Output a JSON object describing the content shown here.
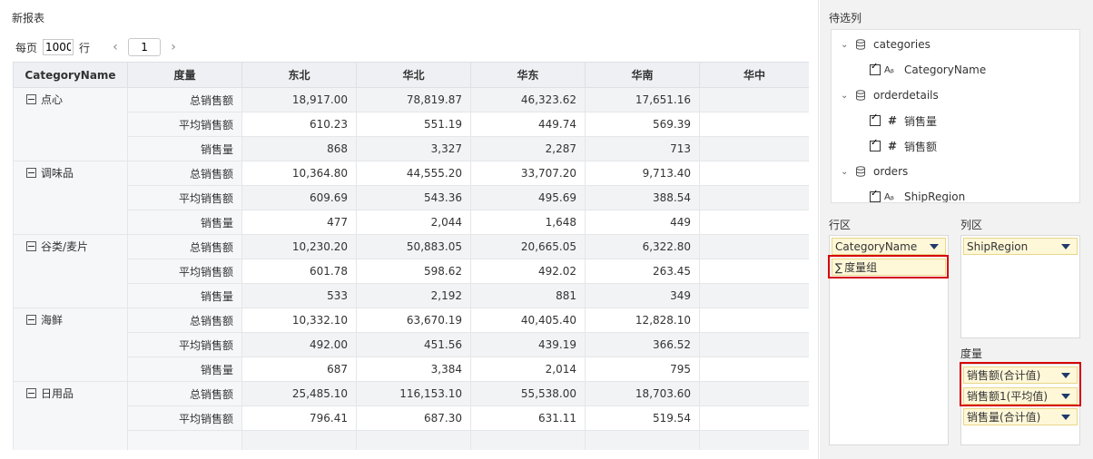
{
  "report": {
    "title": "新报表",
    "pager": {
      "per_page_label": "每页",
      "rows_value": "1000",
      "rows_suffix": "行",
      "prev_icon": "‹",
      "page_value": "1",
      "next_icon": "›"
    }
  },
  "table": {
    "headers": [
      "CategoryName",
      "度量",
      "东北",
      "华北",
      "华东",
      "华南",
      "华中"
    ],
    "groups": [
      {
        "category": "点心",
        "rows": [
          {
            "measure": "总销售额",
            "values": [
              "18,917.00",
              "78,819.87",
              "46,323.62",
              "17,651.16",
              ""
            ]
          },
          {
            "measure": "平均销售额",
            "values": [
              "610.23",
              "551.19",
              "449.74",
              "569.39",
              ""
            ]
          },
          {
            "measure": "销售量",
            "values": [
              "868",
              "3,327",
              "2,287",
              "713",
              ""
            ]
          }
        ]
      },
      {
        "category": "调味品",
        "rows": [
          {
            "measure": "总销售额",
            "values": [
              "10,364.80",
              "44,555.20",
              "33,707.20",
              "9,713.40",
              ""
            ]
          },
          {
            "measure": "平均销售额",
            "values": [
              "609.69",
              "543.36",
              "495.69",
              "388.54",
              ""
            ]
          },
          {
            "measure": "销售量",
            "values": [
              "477",
              "2,044",
              "1,648",
              "449",
              ""
            ]
          }
        ]
      },
      {
        "category": "谷类/麦片",
        "rows": [
          {
            "measure": "总销售额",
            "values": [
              "10,230.20",
              "50,883.05",
              "20,665.05",
              "6,322.80",
              ""
            ]
          },
          {
            "measure": "平均销售额",
            "values": [
              "601.78",
              "598.62",
              "492.02",
              "263.45",
              ""
            ]
          },
          {
            "measure": "销售量",
            "values": [
              "533",
              "2,192",
              "881",
              "349",
              ""
            ]
          }
        ]
      },
      {
        "category": "海鲜",
        "rows": [
          {
            "measure": "总销售额",
            "values": [
              "10,332.10",
              "63,670.19",
              "40,405.40",
              "12,828.10",
              ""
            ]
          },
          {
            "measure": "平均销售额",
            "values": [
              "492.00",
              "451.56",
              "439.19",
              "366.52",
              ""
            ]
          },
          {
            "measure": "销售量",
            "values": [
              "687",
              "3,384",
              "2,014",
              "795",
              ""
            ]
          }
        ]
      },
      {
        "category": "日用品",
        "rows": [
          {
            "measure": "总销售额",
            "values": [
              "25,485.10",
              "116,153.10",
              "55,538.00",
              "18,703.60",
              ""
            ]
          },
          {
            "measure": "平均销售额",
            "values": [
              "796.41",
              "687.30",
              "631.11",
              "519.54",
              ""
            ]
          },
          {
            "measure": "",
            "values": [
              "",
              "",
              "",
              "",
              ""
            ]
          }
        ]
      }
    ]
  },
  "sidebar": {
    "available_label": "待选列",
    "tree": [
      {
        "type": "table",
        "label": "categories"
      },
      {
        "type": "field",
        "kind": "text",
        "kind_glyph": "Aᵦ",
        "label": "CategoryName"
      },
      {
        "type": "table",
        "label": "orderdetails"
      },
      {
        "type": "field",
        "kind": "number",
        "kind_glyph": "#",
        "label": "销售量"
      },
      {
        "type": "field",
        "kind": "number",
        "kind_glyph": "#",
        "label": "销售额"
      },
      {
        "type": "table",
        "label": "orders"
      },
      {
        "type": "field",
        "kind": "text",
        "kind_glyph": "Aᵦ",
        "label": "ShipRegion"
      }
    ],
    "row_zone": {
      "label": "行区",
      "chips": [
        "CategoryName",
        "度量组"
      ],
      "sigma": "∑"
    },
    "col_zone": {
      "label": "列区",
      "chips": [
        "ShipRegion"
      ]
    },
    "measure_zone": {
      "label": "度量",
      "chips": [
        "销售额(合计值)",
        "销售额1(平均值)",
        "销售量(合计值)"
      ]
    },
    "highlight_color": "#d60000",
    "chip_color": "#fff8d8"
  }
}
